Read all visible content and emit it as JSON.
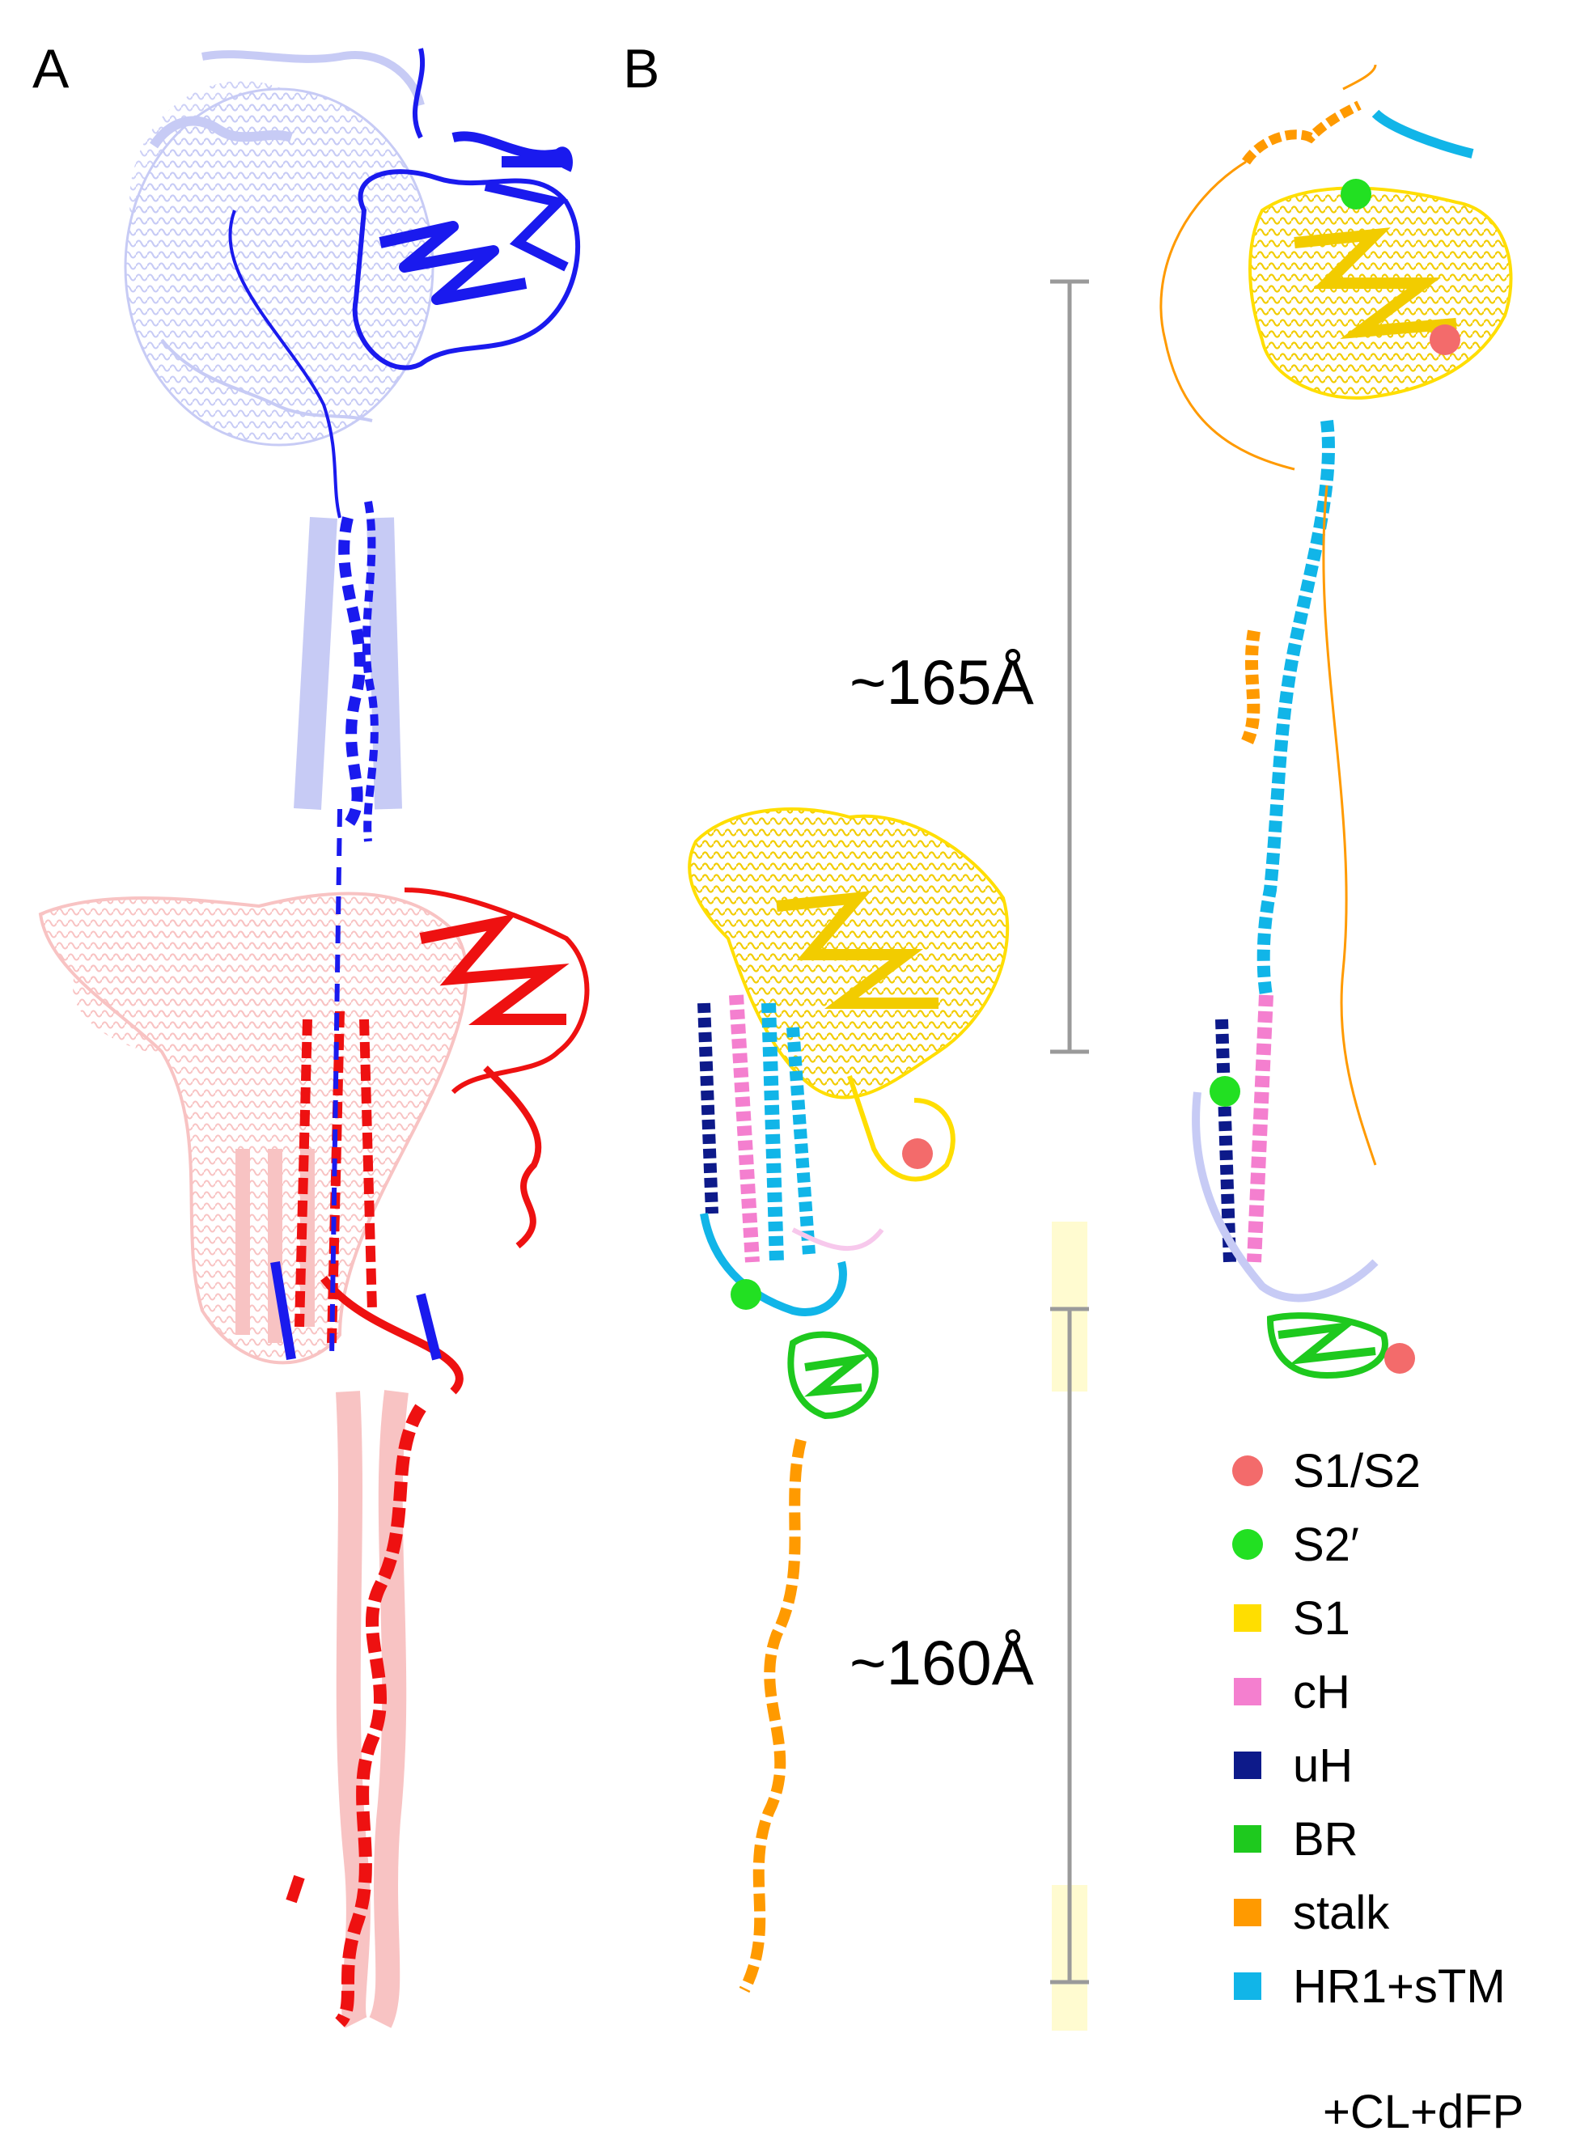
{
  "panels": {
    "a": "A",
    "b": "B"
  },
  "measurements": {
    "upper": "~165Å",
    "lower": "~160Å"
  },
  "legend": [
    {
      "shape": "dot",
      "color": "#f36b6b",
      "label": "S1/S2"
    },
    {
      "shape": "dot",
      "color": "#22e022",
      "label": "S2′"
    },
    {
      "shape": "square",
      "color": "#ffde00",
      "label": "S1"
    },
    {
      "shape": "square",
      "color": "#f47fcf",
      "label": "cH"
    },
    {
      "shape": "square",
      "color": "#0d1a8a",
      "label": "uH"
    },
    {
      "shape": "square",
      "color": "#1ec91e",
      "label": "BR"
    },
    {
      "shape": "square",
      "color": "#ff9a00",
      "label": "stalk"
    },
    {
      "shape": "square",
      "color": "#11b5e8",
      "label": "HR1+sTM"
    }
  ],
  "legend_continuation": "+CL+dFP",
  "colors": {
    "blue_dark": "#1a1aee",
    "blue_light": "#c7cbf5",
    "red_dark": "#ee1111",
    "red_light": "#f8c3c3",
    "scale_bar": "#9a9a9a",
    "highlight_band": "#fffbd0"
  }
}
